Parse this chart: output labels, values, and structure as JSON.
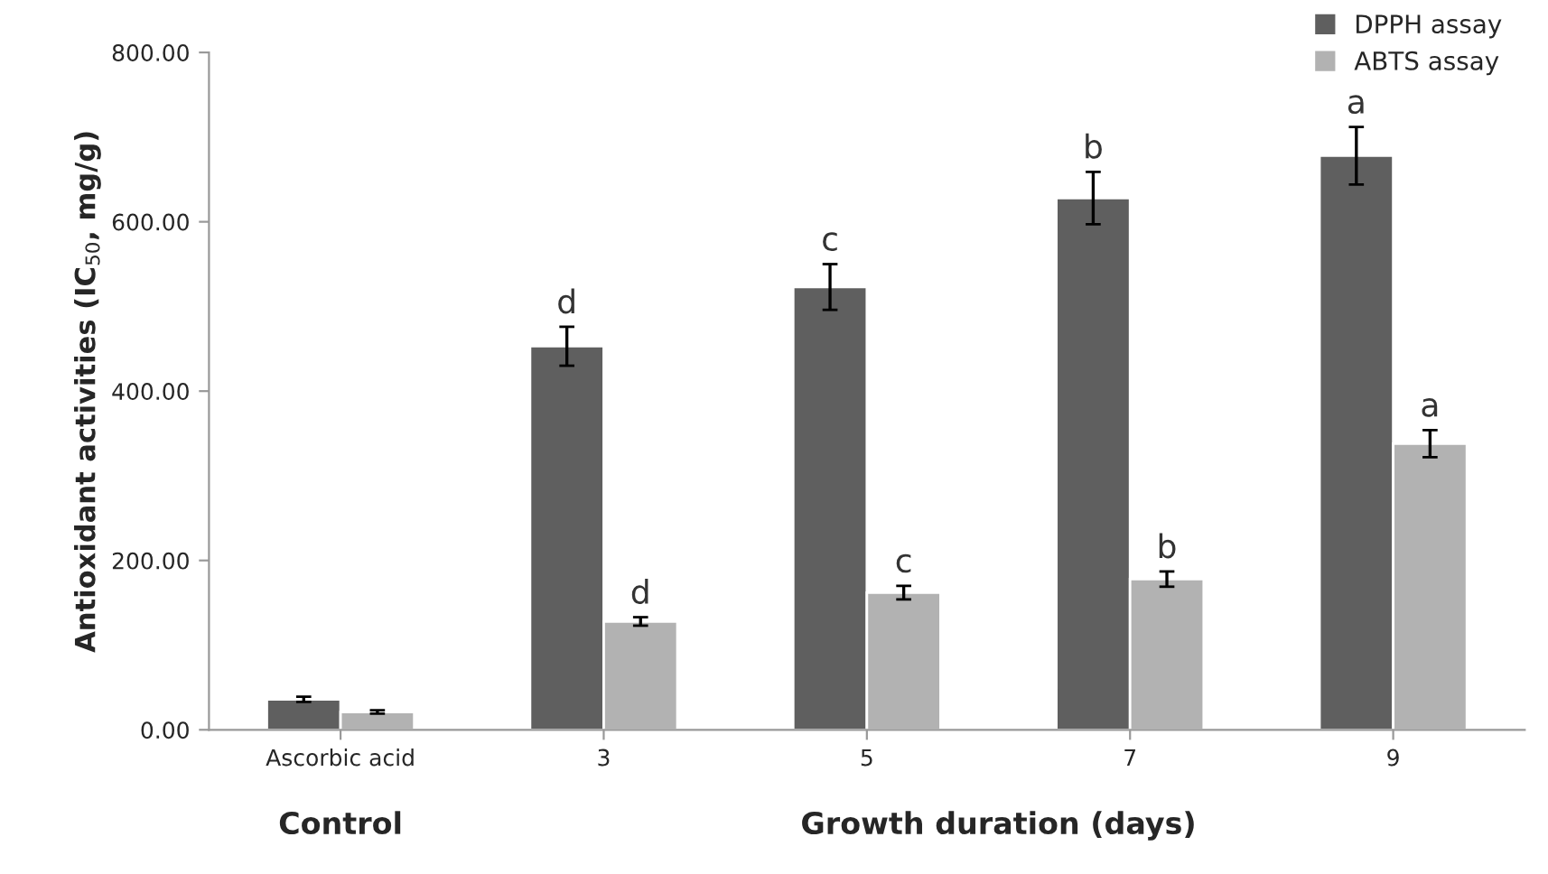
{
  "chart_data": {
    "type": "bar",
    "ylabel": "Antioxidant activities (IC$_{50}$, mg/g)",
    "xlabel": "Growth duration (days)",
    "annotations": [
      "Control"
    ],
    "categories": [
      "Ascorbic acid",
      "3",
      "5",
      "7",
      "9"
    ],
    "series": [
      {
        "name": "DPPH assay",
        "color": "#5f5f5f",
        "values": [
          36,
          453,
          523,
          628,
          678
        ],
        "errors": [
          3,
          23,
          27,
          31,
          34
        ],
        "value_labels": [
          null,
          "d",
          "c",
          "b",
          "a"
        ]
      },
      {
        "name": "ABTS assay",
        "color": "#b2b2b2",
        "values": [
          21,
          128,
          162,
          178,
          338
        ],
        "errors": [
          2,
          5,
          8,
          9,
          16
        ],
        "value_labels": [
          null,
          "d",
          "c",
          "b",
          "a"
        ]
      }
    ],
    "ylim": [
      0,
      800
    ],
    "yticks": [
      {
        "value": 0,
        "label": "0.00"
      },
      {
        "value": 200,
        "label": "200.00"
      },
      {
        "value": 400,
        "label": "400.00"
      },
      {
        "value": 600,
        "label": "600.00"
      },
      {
        "value": 800,
        "label": "800.00"
      }
    ],
    "grid": false,
    "legend": "top right"
  }
}
